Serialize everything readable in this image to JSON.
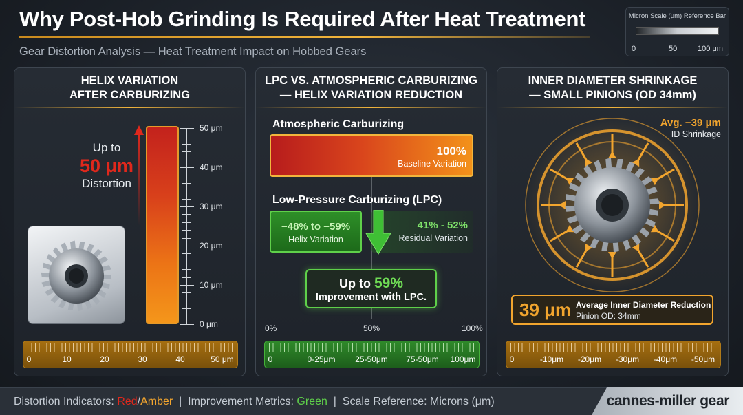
{
  "header": {
    "title": "Why Post-Hob Grinding Is Required After Heat Treatment",
    "subtitle": "Gear Distortion Analysis — Heat Treatment Impact on Hobbed Gears"
  },
  "micron_reference": {
    "title": "Micron Scale (μm) Reference Bar",
    "ticks": [
      "0",
      "50",
      "100 μm"
    ]
  },
  "panel_helix": {
    "title_line1": "HELIX VARIATION",
    "title_line2": "AFTER CARBURIZING",
    "lead": "Up to",
    "value": "50 μm",
    "caption": "Distortion",
    "distortion_level_um": 50,
    "scale_labels": [
      "50 μm",
      "40 μm",
      "30 μm",
      "20 μm",
      "10 μm",
      "0 μm"
    ],
    "ruler_labels": [
      "0",
      "10",
      "20",
      "30",
      "40",
      "50 μm"
    ]
  },
  "panel_lpc": {
    "title_line1": "LPC VS. ATMOSPHERIC CARBURIZING",
    "title_line2": "— HELIX VARIATION REDUCTION",
    "atm_label": "Atmospheric Carburizing",
    "atm_value": "100%",
    "atm_caption": "Baseline Variation",
    "lpc_label": "Low-Pressure Carburizing (LPC)",
    "lpc_value": "−48% to −59%",
    "lpc_caption": "Helix Variation",
    "residual_value": "41% - 52%",
    "residual_caption": "Residual Variation",
    "improve_lead": "Up to",
    "improve_value": "59%",
    "improve_caption": "Improvement with LPC.",
    "axis_labels": [
      "0%",
      "50%",
      "100%"
    ],
    "ruler_labels": [
      "0",
      "0-25μm",
      "25-50μm",
      "75-50μm",
      "100μm"
    ]
  },
  "panel_shrink": {
    "title_line1": "INNER DIAMETER SHRINKAGE",
    "title_line2": "— SMALL PINIONS (OD 34mm)",
    "avg_value": "Avg. −39 μm",
    "avg_caption": "ID Shrinkage",
    "big_value": "39 μm",
    "box_title": "Average Inner Diameter Reduction",
    "box_caption": "Pinion OD: 34mm",
    "ruler_labels": [
      "0",
      "-10μm",
      "-20μm",
      "-30μm",
      "-40μm",
      "-50μm"
    ]
  },
  "footer": {
    "prefix": "Distortion Indicators: ",
    "red": "Red",
    "slash": "/",
    "amber": "Amber",
    "sep1": "  |  Improvement Metrics: ",
    "green": "Green",
    "sep2": "  |  Scale Reference: Microns (μm)",
    "brand": "cannes-miller gear"
  },
  "colors": {
    "accent_amber": "#f2b53c",
    "distortion_red": "#d8261c",
    "improvement_green": "#5fd04a"
  }
}
